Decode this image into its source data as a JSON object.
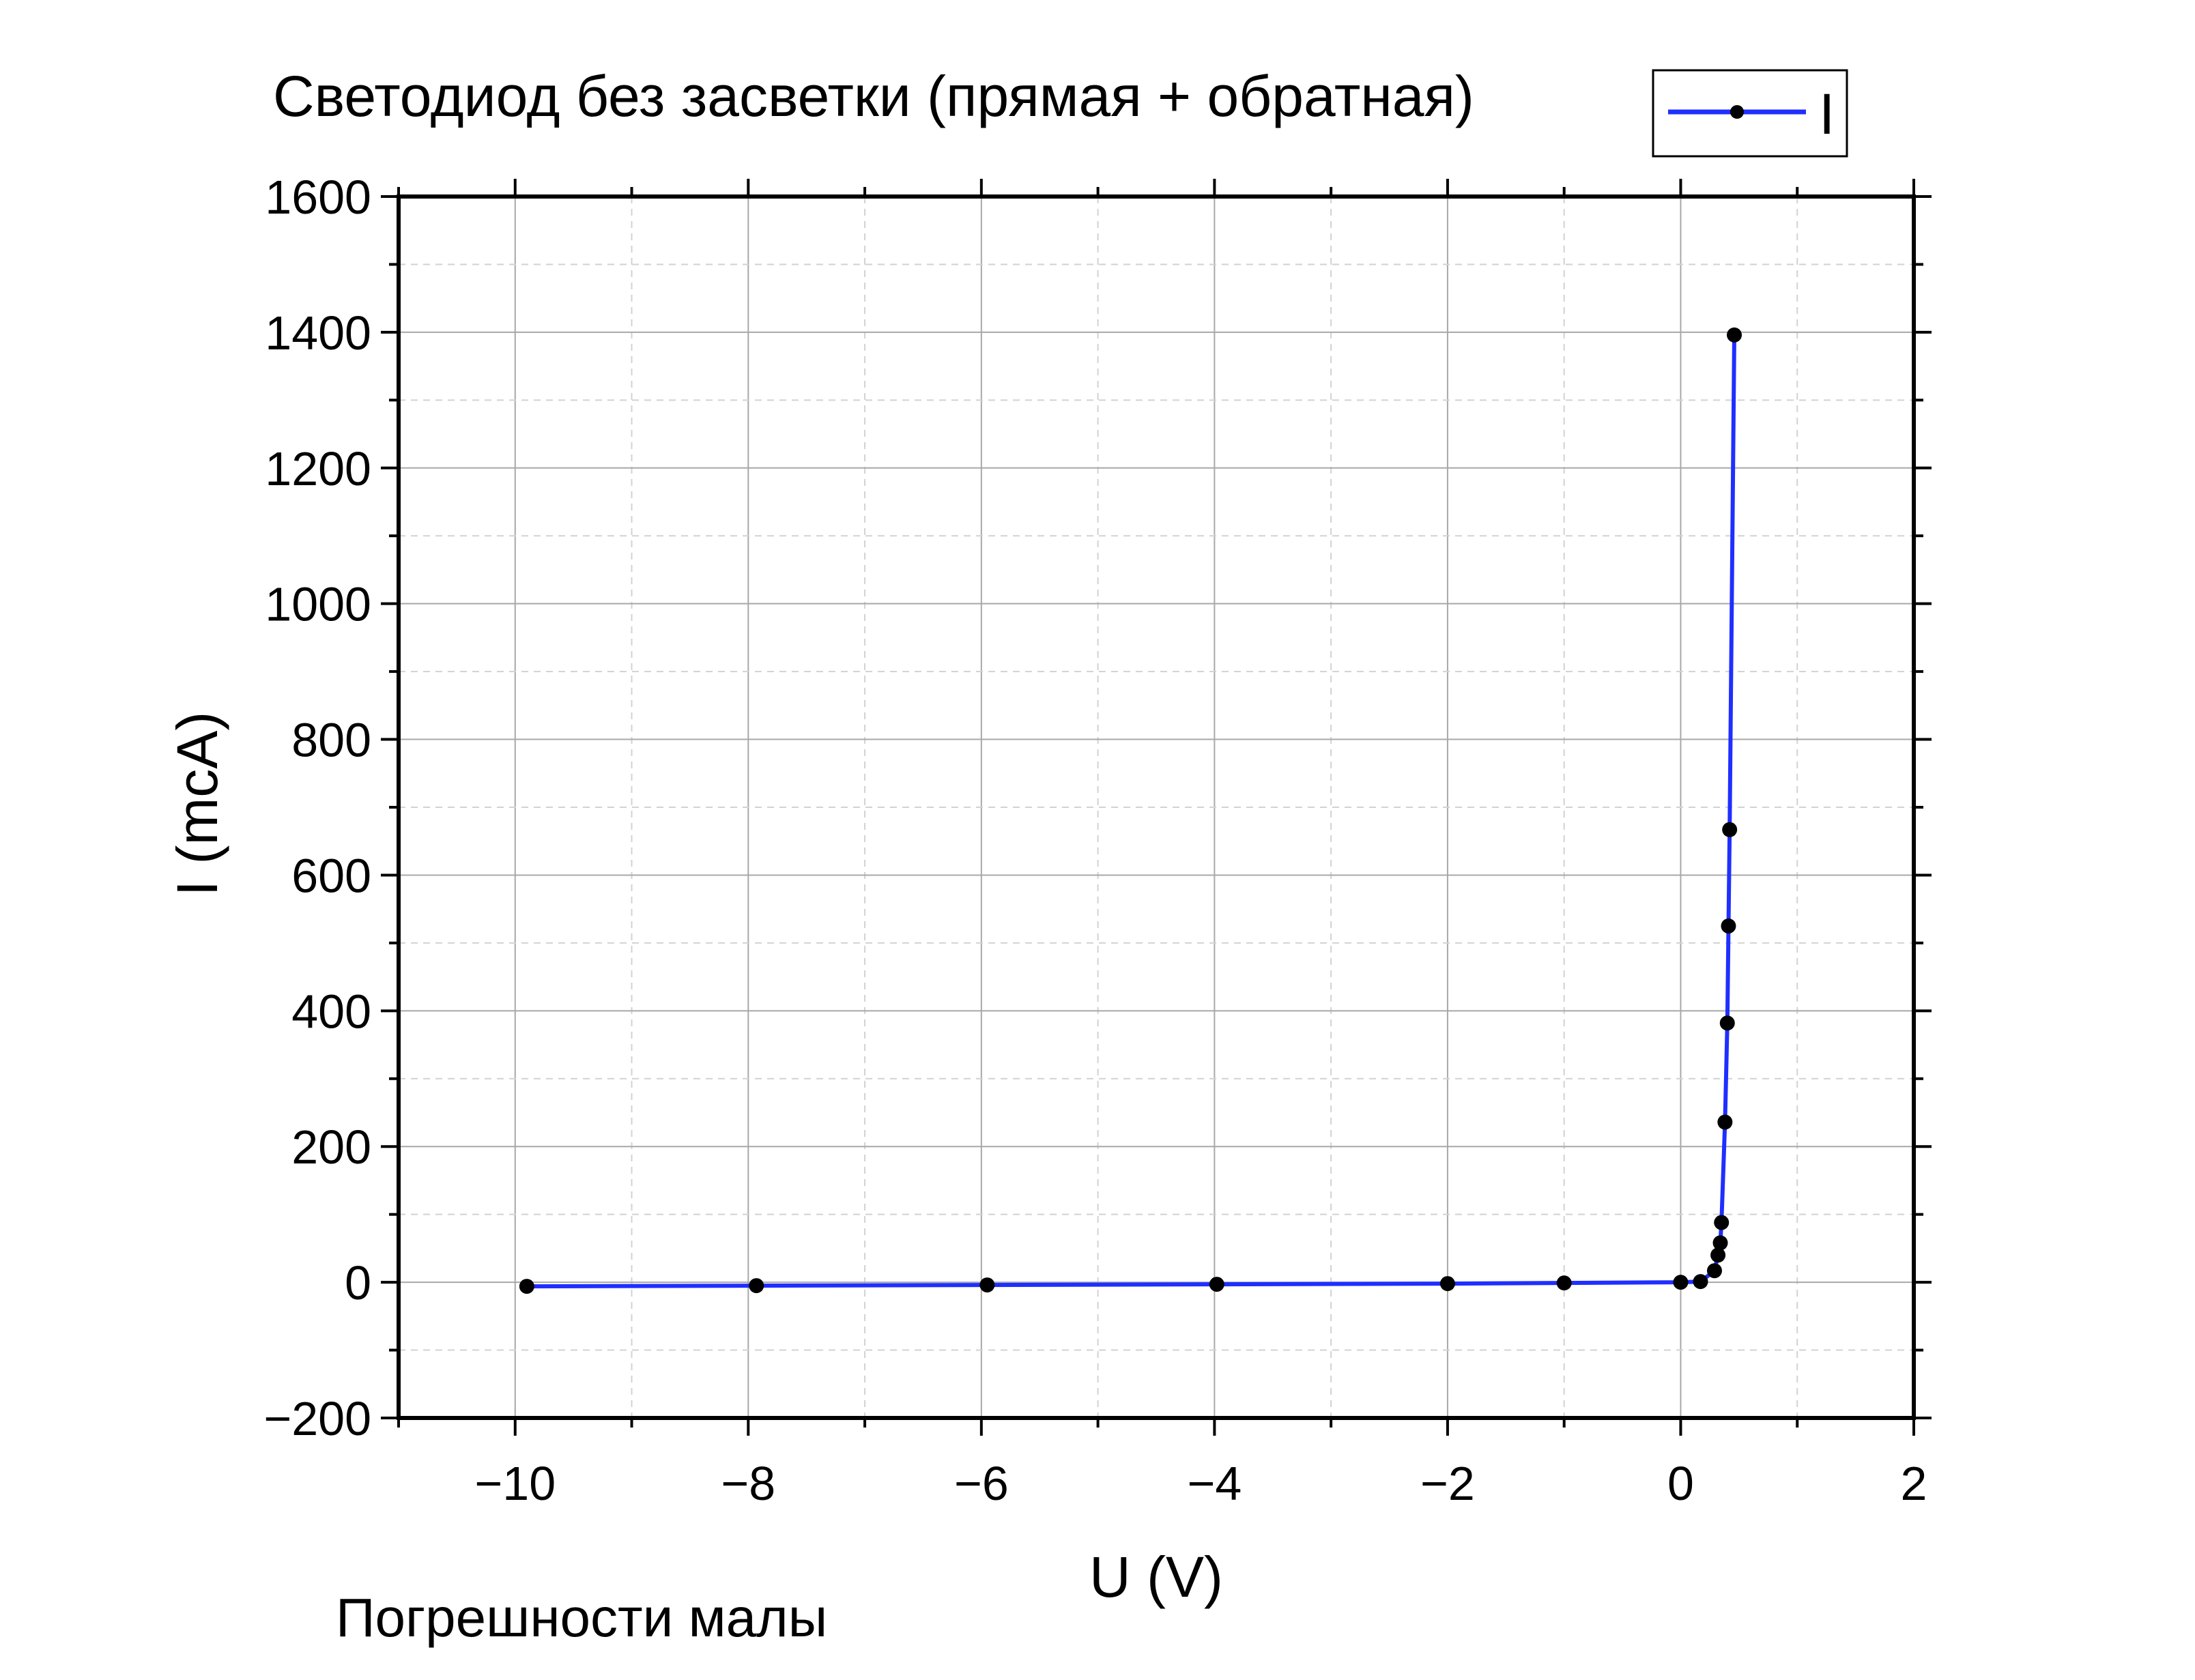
{
  "chart_data": {
    "type": "line",
    "title": "Светодиод без засветки (прямая + обратная)",
    "xlabel": "U (V)",
    "ylabel": "I (mcA)",
    "xlim": [
      -11,
      2
    ],
    "ylim": [
      -200,
      1600
    ],
    "x_ticks": [
      -10,
      -8,
      -6,
      -4,
      -2,
      0,
      2
    ],
    "x_tick_labels": [
      "−10",
      "−8",
      "−6",
      "−4",
      "−2",
      "0",
      "2"
    ],
    "y_ticks": [
      -200,
      0,
      200,
      400,
      600,
      800,
      1000,
      1200,
      1400,
      1600
    ],
    "y_tick_labels": [
      "−200",
      "0",
      "200",
      "400",
      "600",
      "800",
      "1000",
      "1200",
      "1400",
      "1600"
    ],
    "grid": true,
    "legend_position": "top-right",
    "series": [
      {
        "name": "I",
        "color": "#1f2fff",
        "marker_color": "#000000",
        "points": [
          {
            "x": -9.9,
            "y": -6
          },
          {
            "x": -7.93,
            "y": -5
          },
          {
            "x": -5.95,
            "y": -4
          },
          {
            "x": -3.98,
            "y": -3
          },
          {
            "x": -2.0,
            "y": -2
          },
          {
            "x": -1.0,
            "y": -1
          },
          {
            "x": 0.0,
            "y": 0
          },
          {
            "x": 0.17,
            "y": 1
          },
          {
            "x": 0.29,
            "y": 17
          },
          {
            "x": 0.32,
            "y": 40
          },
          {
            "x": 0.34,
            "y": 58
          },
          {
            "x": 0.35,
            "y": 88
          },
          {
            "x": 0.38,
            "y": 236
          },
          {
            "x": 0.4,
            "y": 382
          },
          {
            "x": 0.41,
            "y": 525
          },
          {
            "x": 0.42,
            "y": 667
          },
          {
            "x": 0.46,
            "y": 1396
          }
        ]
      }
    ],
    "annotation": "Погрешности малы"
  }
}
